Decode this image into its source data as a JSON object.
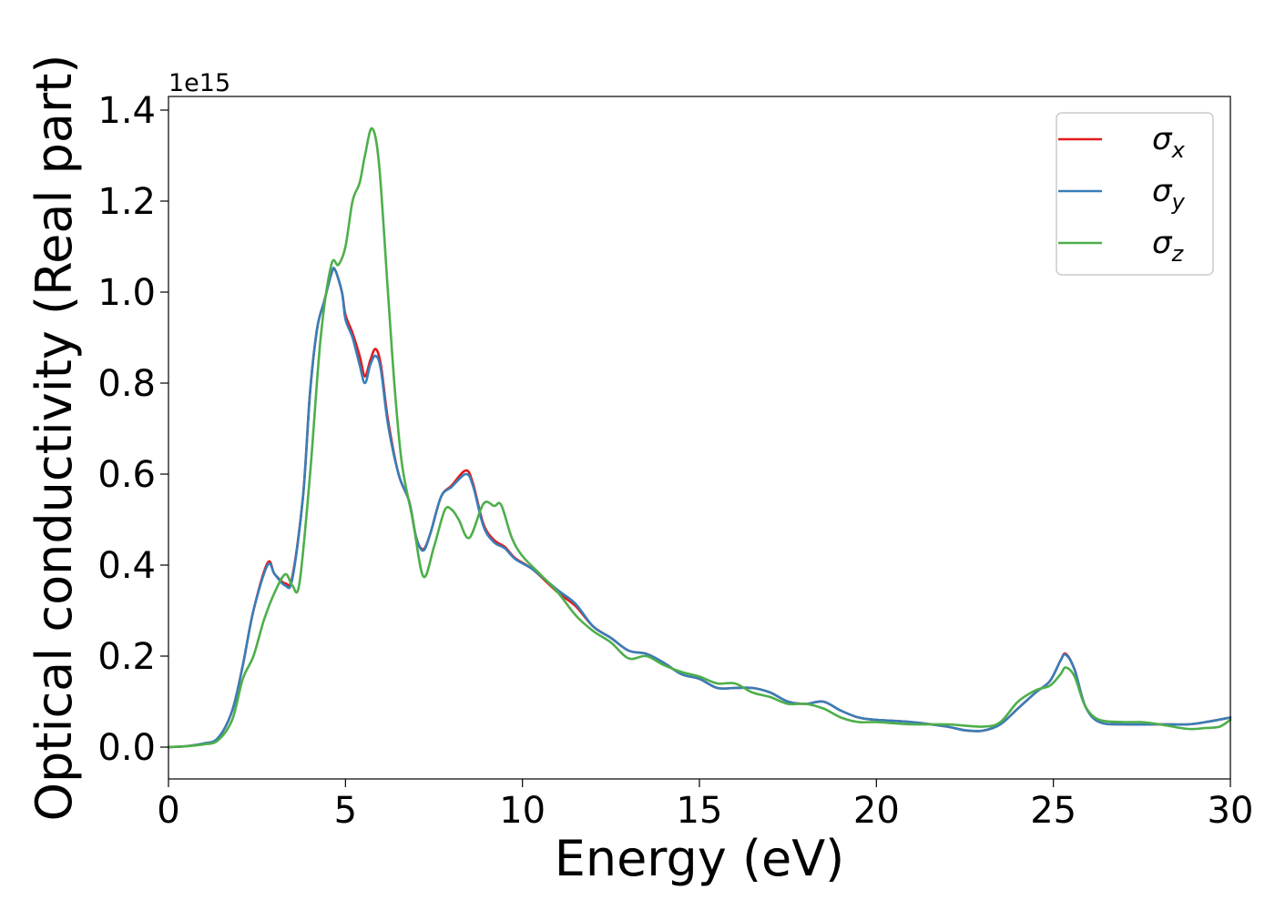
{
  "chart_data": {
    "type": "line",
    "xlabel": "Energy (eV)",
    "ylabel": "Optical conductivity (Real part)",
    "y_offset_text": "1e15",
    "xlim": [
      0,
      30
    ],
    "ylim": [
      -0.07,
      1.43
    ],
    "y_scale_multiplier": 1000000000000000.0,
    "x_ticks": [
      0,
      5,
      10,
      15,
      20,
      25,
      30
    ],
    "x_tick_labels": [
      "0",
      "5",
      "10",
      "15",
      "20",
      "25",
      "30"
    ],
    "y_ticks": [
      0.0,
      0.2,
      0.4,
      0.6,
      0.8,
      1.0,
      1.2,
      1.4
    ],
    "y_tick_labels": [
      "0.0",
      "0.2",
      "0.4",
      "0.6",
      "0.8",
      "1.0",
      "1.2",
      "1.4"
    ],
    "grid": false,
    "legend_position": "top-right",
    "series": [
      {
        "name": "σx",
        "legend_base": "σ",
        "legend_sub": "x",
        "color": "#e41a1c",
        "points": [
          [
            0,
            0
          ],
          [
            0.5,
            0.002
          ],
          [
            1.0,
            0.008
          ],
          [
            1.4,
            0.02
          ],
          [
            1.8,
            0.08
          ],
          [
            2.1,
            0.18
          ],
          [
            2.4,
            0.3
          ],
          [
            2.8,
            0.405
          ],
          [
            3.0,
            0.38
          ],
          [
            3.3,
            0.36
          ],
          [
            3.5,
            0.375
          ],
          [
            3.8,
            0.55
          ],
          [
            4.0,
            0.78
          ],
          [
            4.2,
            0.92
          ],
          [
            4.4,
            0.98
          ],
          [
            4.6,
            1.04
          ],
          [
            4.7,
            1.05
          ],
          [
            4.9,
            1.0
          ],
          [
            5.0,
            0.95
          ],
          [
            5.2,
            0.91
          ],
          [
            5.4,
            0.86
          ],
          [
            5.55,
            0.815
          ],
          [
            5.7,
            0.85
          ],
          [
            5.85,
            0.875
          ],
          [
            6.0,
            0.84
          ],
          [
            6.2,
            0.72
          ],
          [
            6.5,
            0.6
          ],
          [
            6.8,
            0.54
          ],
          [
            7.0,
            0.46
          ],
          [
            7.2,
            0.435
          ],
          [
            7.4,
            0.47
          ],
          [
            7.7,
            0.55
          ],
          [
            8.0,
            0.575
          ],
          [
            8.4,
            0.608
          ],
          [
            8.6,
            0.58
          ],
          [
            8.9,
            0.49
          ],
          [
            9.2,
            0.455
          ],
          [
            9.5,
            0.44
          ],
          [
            9.8,
            0.415
          ],
          [
            10.3,
            0.39
          ],
          [
            11.0,
            0.34
          ],
          [
            11.5,
            0.31
          ],
          [
            12.0,
            0.265
          ],
          [
            12.5,
            0.24
          ],
          [
            13.0,
            0.212
          ],
          [
            13.5,
            0.205
          ],
          [
            14.0,
            0.185
          ],
          [
            14.5,
            0.16
          ],
          [
            15.0,
            0.15
          ],
          [
            15.5,
            0.13
          ],
          [
            16.0,
            0.13
          ],
          [
            16.5,
            0.13
          ],
          [
            17.0,
            0.12
          ],
          [
            17.5,
            0.1
          ],
          [
            18.0,
            0.095
          ],
          [
            18.5,
            0.1
          ],
          [
            19.0,
            0.08
          ],
          [
            19.5,
            0.065
          ],
          [
            20.0,
            0.06
          ],
          [
            21.0,
            0.055
          ],
          [
            22.0,
            0.045
          ],
          [
            22.5,
            0.037
          ],
          [
            23.0,
            0.036
          ],
          [
            23.5,
            0.05
          ],
          [
            24.0,
            0.085
          ],
          [
            24.5,
            0.12
          ],
          [
            24.9,
            0.145
          ],
          [
            25.2,
            0.19
          ],
          [
            25.35,
            0.205
          ],
          [
            25.6,
            0.17
          ],
          [
            25.9,
            0.09
          ],
          [
            26.3,
            0.055
          ],
          [
            27.0,
            0.05
          ],
          [
            28.0,
            0.05
          ],
          [
            28.8,
            0.05
          ],
          [
            29.3,
            0.055
          ],
          [
            30.0,
            0.065
          ]
        ]
      },
      {
        "name": "σy",
        "legend_base": "σ",
        "legend_sub": "y",
        "color": "#377eb8",
        "points": [
          [
            0,
            0
          ],
          [
            0.5,
            0.002
          ],
          [
            1.0,
            0.008
          ],
          [
            1.4,
            0.02
          ],
          [
            1.8,
            0.08
          ],
          [
            2.1,
            0.18
          ],
          [
            2.4,
            0.3
          ],
          [
            2.8,
            0.4
          ],
          [
            3.0,
            0.38
          ],
          [
            3.3,
            0.355
          ],
          [
            3.5,
            0.37
          ],
          [
            3.8,
            0.55
          ],
          [
            4.0,
            0.78
          ],
          [
            4.2,
            0.92
          ],
          [
            4.4,
            0.98
          ],
          [
            4.6,
            1.04
          ],
          [
            4.7,
            1.05
          ],
          [
            4.9,
            1.0
          ],
          [
            5.0,
            0.94
          ],
          [
            5.2,
            0.9
          ],
          [
            5.4,
            0.84
          ],
          [
            5.55,
            0.8
          ],
          [
            5.7,
            0.84
          ],
          [
            5.85,
            0.86
          ],
          [
            6.0,
            0.83
          ],
          [
            6.2,
            0.71
          ],
          [
            6.5,
            0.6
          ],
          [
            6.8,
            0.54
          ],
          [
            7.0,
            0.46
          ],
          [
            7.2,
            0.432
          ],
          [
            7.4,
            0.47
          ],
          [
            7.7,
            0.55
          ],
          [
            8.0,
            0.572
          ],
          [
            8.4,
            0.6
          ],
          [
            8.6,
            0.575
          ],
          [
            8.9,
            0.485
          ],
          [
            9.2,
            0.45
          ],
          [
            9.5,
            0.437
          ],
          [
            9.8,
            0.413
          ],
          [
            10.3,
            0.39
          ],
          [
            11.0,
            0.345
          ],
          [
            11.5,
            0.315
          ],
          [
            12.0,
            0.265
          ],
          [
            12.5,
            0.24
          ],
          [
            13.0,
            0.212
          ],
          [
            13.5,
            0.205
          ],
          [
            14.0,
            0.185
          ],
          [
            14.5,
            0.16
          ],
          [
            15.0,
            0.15
          ],
          [
            15.5,
            0.13
          ],
          [
            16.0,
            0.13
          ],
          [
            16.5,
            0.13
          ],
          [
            17.0,
            0.12
          ],
          [
            17.5,
            0.1
          ],
          [
            18.0,
            0.095
          ],
          [
            18.5,
            0.1
          ],
          [
            19.0,
            0.08
          ],
          [
            19.5,
            0.065
          ],
          [
            20.0,
            0.06
          ],
          [
            21.0,
            0.055
          ],
          [
            22.0,
            0.045
          ],
          [
            22.5,
            0.037
          ],
          [
            23.0,
            0.036
          ],
          [
            23.5,
            0.05
          ],
          [
            24.0,
            0.085
          ],
          [
            24.5,
            0.12
          ],
          [
            24.9,
            0.145
          ],
          [
            25.2,
            0.19
          ],
          [
            25.35,
            0.203
          ],
          [
            25.6,
            0.17
          ],
          [
            25.9,
            0.09
          ],
          [
            26.3,
            0.055
          ],
          [
            27.0,
            0.05
          ],
          [
            28.0,
            0.05
          ],
          [
            28.8,
            0.05
          ],
          [
            29.3,
            0.055
          ],
          [
            30.0,
            0.065
          ]
        ]
      },
      {
        "name": "σz",
        "legend_base": "σ",
        "legend_sub": "z",
        "color": "#4daf4a",
        "points": [
          [
            0,
            0
          ],
          [
            0.5,
            0.002
          ],
          [
            1.0,
            0.006
          ],
          [
            1.4,
            0.015
          ],
          [
            1.8,
            0.06
          ],
          [
            2.1,
            0.15
          ],
          [
            2.4,
            0.2
          ],
          [
            2.7,
            0.28
          ],
          [
            3.0,
            0.34
          ],
          [
            3.3,
            0.38
          ],
          [
            3.5,
            0.355
          ],
          [
            3.7,
            0.36
          ],
          [
            4.0,
            0.6
          ],
          [
            4.3,
            0.9
          ],
          [
            4.6,
            1.06
          ],
          [
            4.8,
            1.06
          ],
          [
            5.0,
            1.1
          ],
          [
            5.2,
            1.2
          ],
          [
            5.4,
            1.24
          ],
          [
            5.55,
            1.3
          ],
          [
            5.75,
            1.36
          ],
          [
            5.95,
            1.28
          ],
          [
            6.2,
            1.0
          ],
          [
            6.4,
            0.78
          ],
          [
            6.6,
            0.62
          ],
          [
            6.9,
            0.5
          ],
          [
            7.2,
            0.375
          ],
          [
            7.5,
            0.44
          ],
          [
            7.8,
            0.52
          ],
          [
            8.0,
            0.522
          ],
          [
            8.2,
            0.5
          ],
          [
            8.5,
            0.46
          ],
          [
            8.9,
            0.535
          ],
          [
            9.2,
            0.53
          ],
          [
            9.4,
            0.532
          ],
          [
            9.7,
            0.46
          ],
          [
            10.0,
            0.42
          ],
          [
            10.5,
            0.38
          ],
          [
            11.0,
            0.34
          ],
          [
            11.5,
            0.29
          ],
          [
            12.0,
            0.255
          ],
          [
            12.5,
            0.23
          ],
          [
            13.0,
            0.195
          ],
          [
            13.5,
            0.2
          ],
          [
            14.0,
            0.18
          ],
          [
            14.5,
            0.165
          ],
          [
            15.0,
            0.155
          ],
          [
            15.5,
            0.14
          ],
          [
            16.0,
            0.14
          ],
          [
            16.5,
            0.12
          ],
          [
            17.0,
            0.11
          ],
          [
            17.5,
            0.095
          ],
          [
            18.0,
            0.095
          ],
          [
            18.5,
            0.085
          ],
          [
            19.0,
            0.065
          ],
          [
            19.5,
            0.055
          ],
          [
            20.0,
            0.055
          ],
          [
            21.0,
            0.05
          ],
          [
            22.0,
            0.05
          ],
          [
            23.0,
            0.045
          ],
          [
            23.5,
            0.055
          ],
          [
            24.0,
            0.1
          ],
          [
            24.5,
            0.125
          ],
          [
            24.9,
            0.135
          ],
          [
            25.2,
            0.16
          ],
          [
            25.35,
            0.175
          ],
          [
            25.6,
            0.155
          ],
          [
            25.9,
            0.09
          ],
          [
            26.3,
            0.06
          ],
          [
            27.0,
            0.055
          ],
          [
            27.5,
            0.055
          ],
          [
            28.0,
            0.05
          ],
          [
            28.8,
            0.04
          ],
          [
            29.3,
            0.042
          ],
          [
            29.7,
            0.045
          ],
          [
            30.0,
            0.06
          ]
        ]
      }
    ]
  }
}
